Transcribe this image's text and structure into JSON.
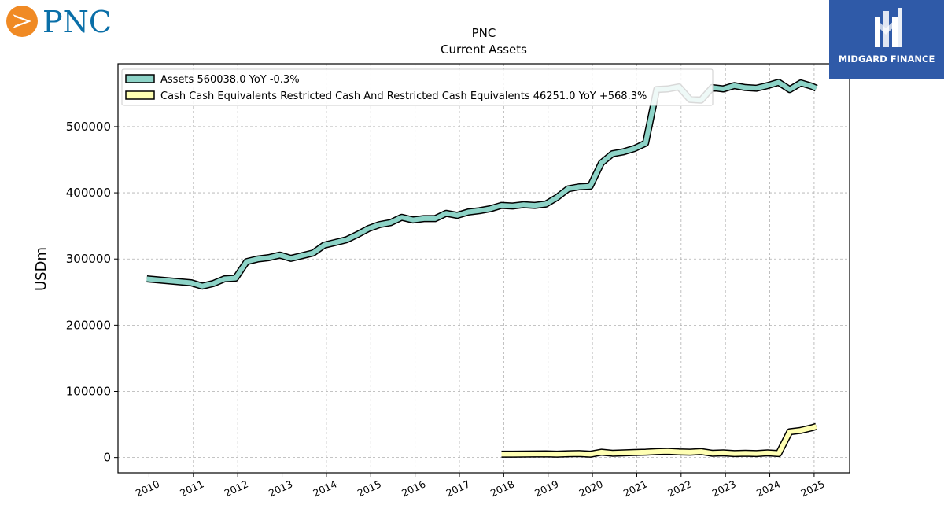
{
  "logos": {
    "left": {
      "text": "PNC",
      "color": "#0a6fa8",
      "accent": "#f08a24"
    },
    "right": {
      "text": "MIDGARD FINANCE",
      "bg": "#2f5aa8"
    }
  },
  "chart_data": {
    "type": "line",
    "title": "PNC",
    "subtitle": "Current  Assets",
    "xlabel": "",
    "ylabel": "USDm",
    "xlim": [
      2009.3,
      2025.8
    ],
    "ylim": [
      -23000,
      595000
    ],
    "x_ticks": [
      "2010",
      "2011",
      "2012",
      "2013",
      "2014",
      "2015",
      "2016",
      "2017",
      "2018",
      "2019",
      "2020",
      "2021",
      "2022",
      "2023",
      "2024",
      "2025"
    ],
    "y_ticks": [
      "0",
      "100000",
      "200000",
      "300000",
      "400000",
      "500000"
    ],
    "y_tick_values": [
      0,
      100000,
      200000,
      300000,
      400000,
      500000
    ],
    "grid": true,
    "legend_position": "top-left",
    "series": [
      {
        "name": "Assets  560038.0 YoY -0.3%",
        "color": "#8dd3c7",
        "x": [
          2009.95,
          2010.95,
          2011.2,
          2011.45,
          2011.7,
          2011.95,
          2012.2,
          2012.45,
          2012.7,
          2012.95,
          2013.2,
          2013.45,
          2013.7,
          2013.95,
          2014.2,
          2014.45,
          2014.7,
          2014.95,
          2015.2,
          2015.45,
          2015.7,
          2015.95,
          2016.2,
          2016.45,
          2016.7,
          2016.95,
          2017.2,
          2017.45,
          2017.7,
          2017.95,
          2018.2,
          2018.45,
          2018.7,
          2018.95,
          2019.2,
          2019.45,
          2019.7,
          2019.95,
          2020.2,
          2020.45,
          2020.7,
          2020.95,
          2021.2,
          2021.45,
          2021.7,
          2021.95,
          2022.2,
          2022.45,
          2022.7,
          2022.95,
          2023.2,
          2023.45,
          2023.7,
          2023.95,
          2024.2,
          2024.45,
          2024.7,
          2024.95,
          2025.05
        ],
        "y": [
          270000,
          264000,
          259000,
          263000,
          270000,
          271000,
          296000,
          300000,
          302000,
          306000,
          301000,
          305000,
          309000,
          321000,
          325000,
          329000,
          337000,
          346000,
          352000,
          355000,
          363000,
          359000,
          361000,
          361000,
          369000,
          366000,
          371000,
          373000,
          376000,
          381000,
          380000,
          382000,
          381000,
          383000,
          393000,
          406000,
          409000,
          410000,
          445000,
          459000,
          462000,
          467000,
          475000,
          556000,
          557000,
          560000,
          541000,
          540000,
          559000,
          557000,
          562000,
          559000,
          558000,
          562000,
          567000,
          556000,
          566000,
          561000,
          558000
        ]
      },
      {
        "name": "Cash Cash Equivalents Restricted Cash And Restricted Cash Equivalents  46251.0 YoY +568.3%",
        "color": "#ffffb3",
        "x": [
          2017.95,
          2018.2,
          2018.45,
          2018.7,
          2018.95,
          2019.2,
          2019.45,
          2019.7,
          2019.95,
          2020.2,
          2020.45,
          2020.7,
          2020.95,
          2021.2,
          2021.45,
          2021.7,
          2021.95,
          2022.2,
          2022.45,
          2022.7,
          2022.95,
          2023.2,
          2023.45,
          2023.7,
          2023.95,
          2024.2,
          2024.45,
          2024.7,
          2024.95,
          2025.05
        ],
        "y": [
          5000,
          5000,
          5200,
          5400,
          5500,
          5000,
          5600,
          6000,
          5000,
          8000,
          6500,
          7000,
          7500,
          8000,
          9000,
          9500,
          8500,
          8000,
          9000,
          6500,
          7000,
          6000,
          6500,
          6000,
          7000,
          6000,
          39000,
          41000,
          45000,
          47000
        ]
      }
    ]
  }
}
